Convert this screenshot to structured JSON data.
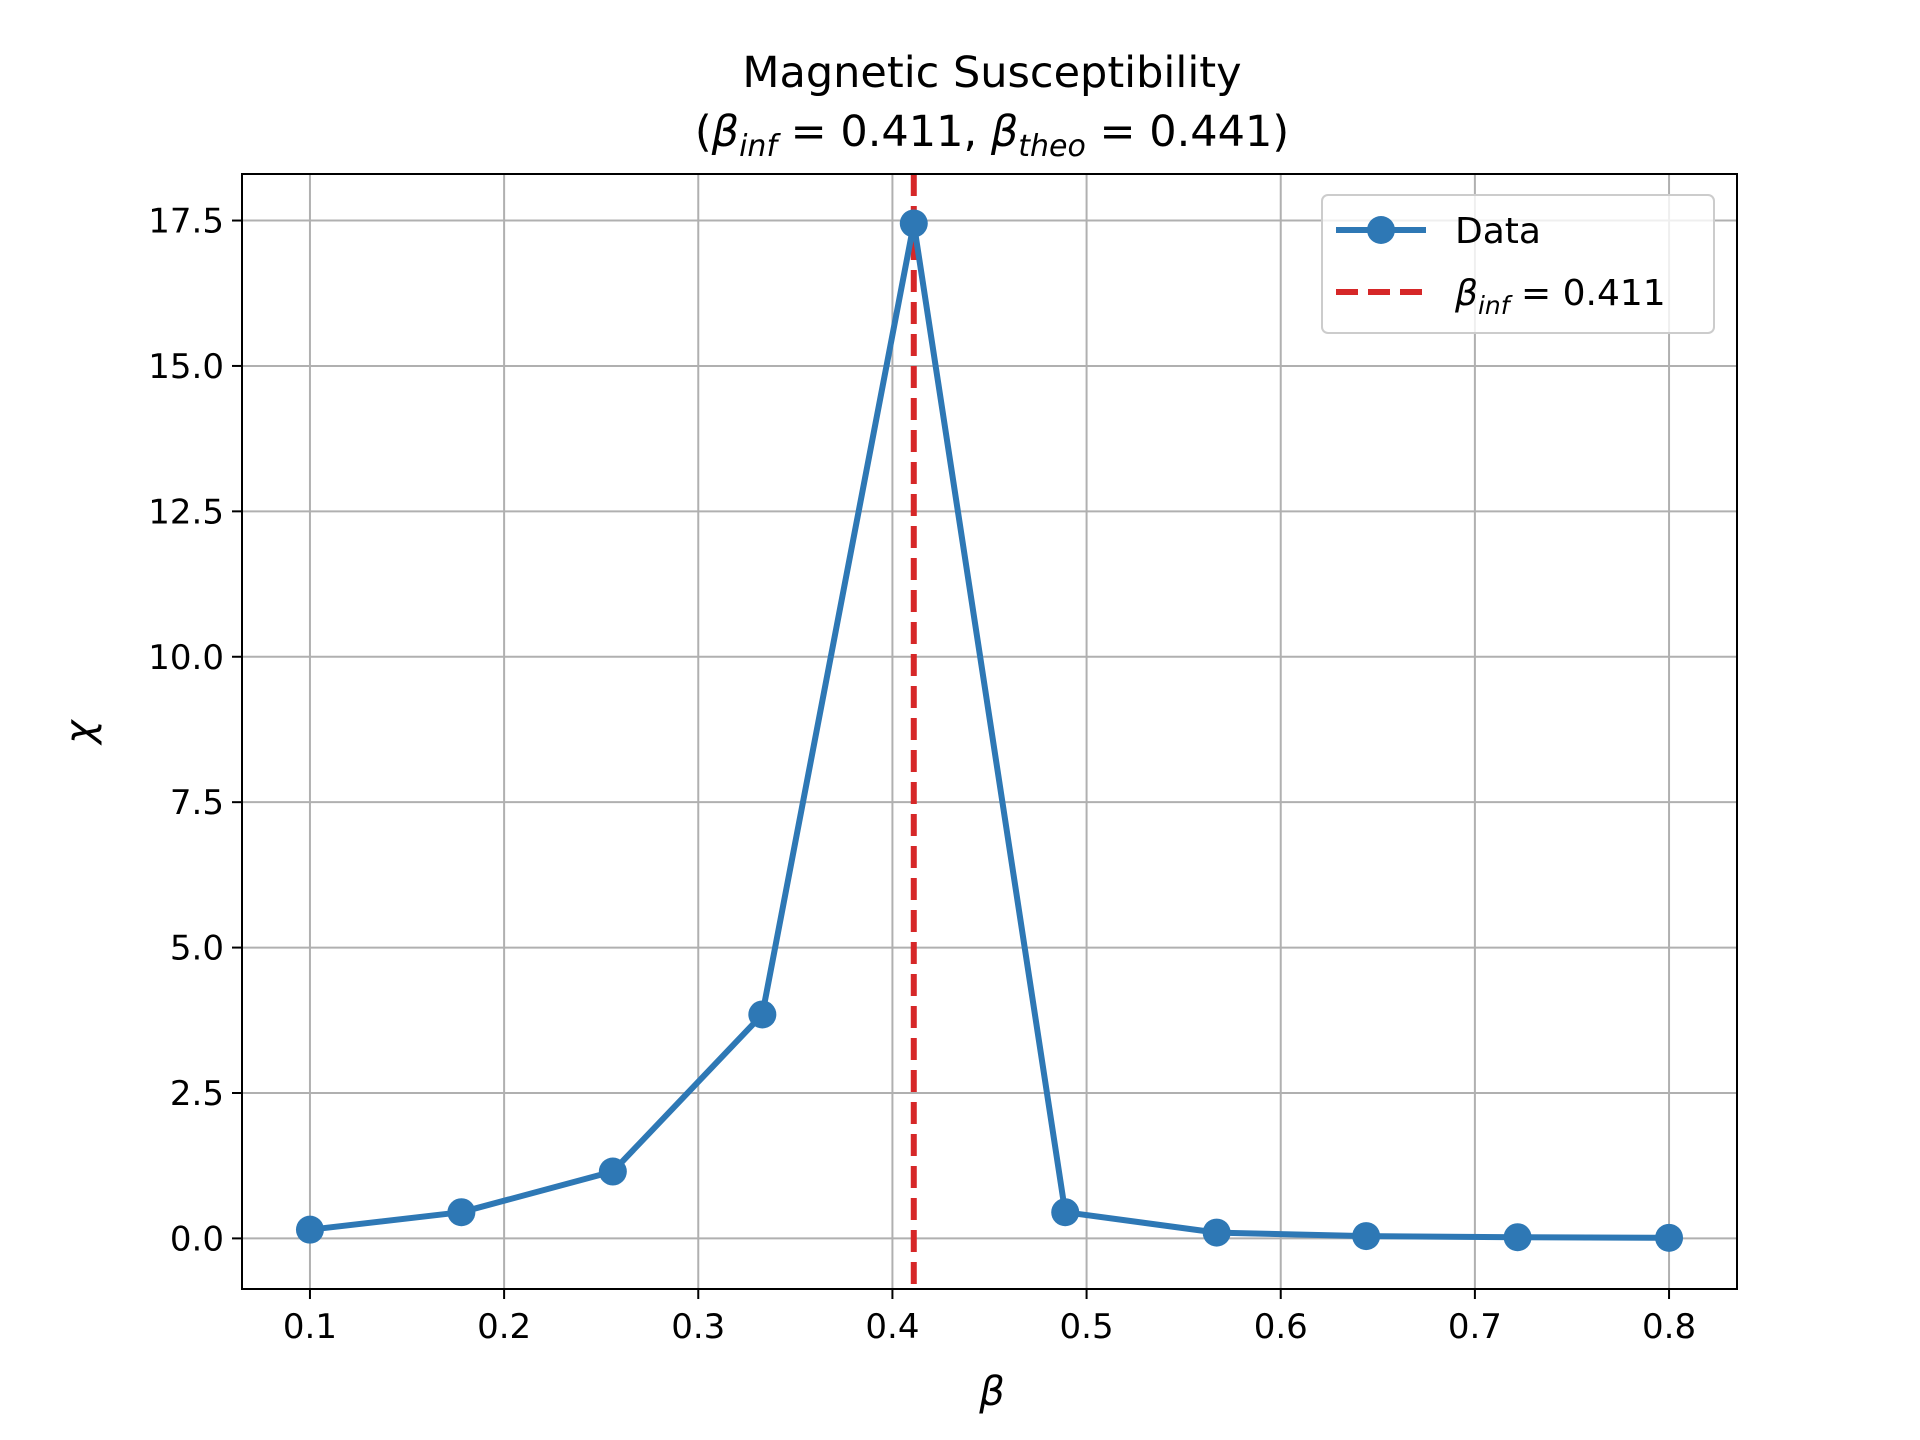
{
  "chart_data": {
    "type": "line",
    "title_line1": "Magnetic Susceptibility",
    "title_line2": {
      "open": "(",
      "beta": "β",
      "sub_inf": "inf",
      "eq_inf": " = 0.411, ",
      "sub_theo": "theo",
      "eq_theo": " = 0.441)"
    },
    "xlabel": "β",
    "ylabel": "χ",
    "xlim": [
      0.065,
      0.835
    ],
    "ylim": [
      -0.87,
      18.3
    ],
    "xticks": [
      0.1,
      0.2,
      0.3,
      0.4,
      0.5,
      0.6,
      0.7,
      0.8
    ],
    "xtick_labels": [
      "0.1",
      "0.2",
      "0.3",
      "0.4",
      "0.5",
      "0.6",
      "0.7",
      "0.8"
    ],
    "yticks": [
      0.0,
      2.5,
      5.0,
      7.5,
      10.0,
      12.5,
      15.0,
      17.5
    ],
    "ytick_labels": [
      "0.0",
      "2.5",
      "5.0",
      "7.5",
      "10.0",
      "12.5",
      "15.0",
      "17.5"
    ],
    "grid": true,
    "series": [
      {
        "name": "Data",
        "color": "#2e78b5",
        "marker": "circle",
        "x": [
          0.1,
          0.178,
          0.256,
          0.333,
          0.411,
          0.489,
          0.567,
          0.644,
          0.722,
          0.8
        ],
        "y": [
          0.15,
          0.45,
          1.15,
          3.85,
          17.45,
          0.45,
          0.1,
          0.04,
          0.02,
          0.01
        ]
      }
    ],
    "vlines": [
      {
        "x": 0.411,
        "color": "#d62728",
        "style": "dashed"
      }
    ],
    "legend": {
      "position": "top-right",
      "entries": [
        {
          "label": "Data"
        },
        {
          "beta": "β",
          "sub": "inf",
          "text": " = 0.411"
        }
      ]
    }
  }
}
